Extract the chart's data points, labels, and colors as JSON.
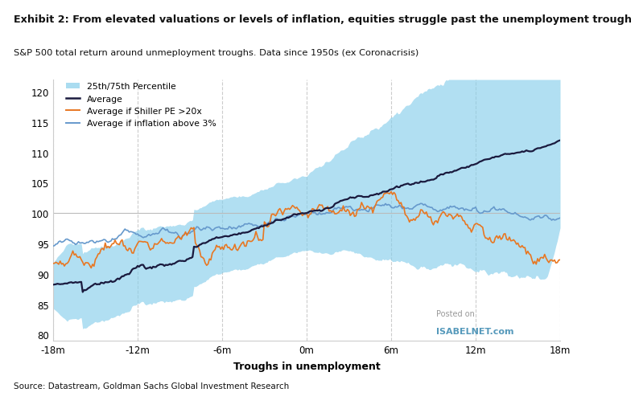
{
  "title_bold": "Exhibit 2: From elevated valuations or levels of inflation, equities struggle past the unemployment trough",
  "title_sub": "S&P 500 total return around unmeployment troughs. Data since 1950s (ex Coronacrisis)",
  "xlabel": "Troughs in unemployment",
  "source": "Source: Datastream, Goldman Sachs Global Investment Research",
  "watermark_line1": "Posted on",
  "watermark_line2": "ISABELNET.com",
  "xlim": [
    -18,
    18
  ],
  "ylim": [
    79,
    122
  ],
  "xticks": [
    -18,
    -12,
    -6,
    0,
    6,
    12,
    18
  ],
  "xtick_labels": [
    "-18m",
    "-12m",
    "-6m",
    "0m",
    "6m",
    "12m",
    "18m"
  ],
  "yticks": [
    80,
    85,
    90,
    95,
    100,
    105,
    110,
    115,
    120
  ],
  "band_color": "#87CEEB",
  "band_alpha": 0.65,
  "avg_color": "#1a1a3e",
  "shiller_color": "#E87722",
  "inflation_color": "#6699CC",
  "background_color": "#ffffff",
  "grid_color": "#cccccc",
  "n_points": 361
}
